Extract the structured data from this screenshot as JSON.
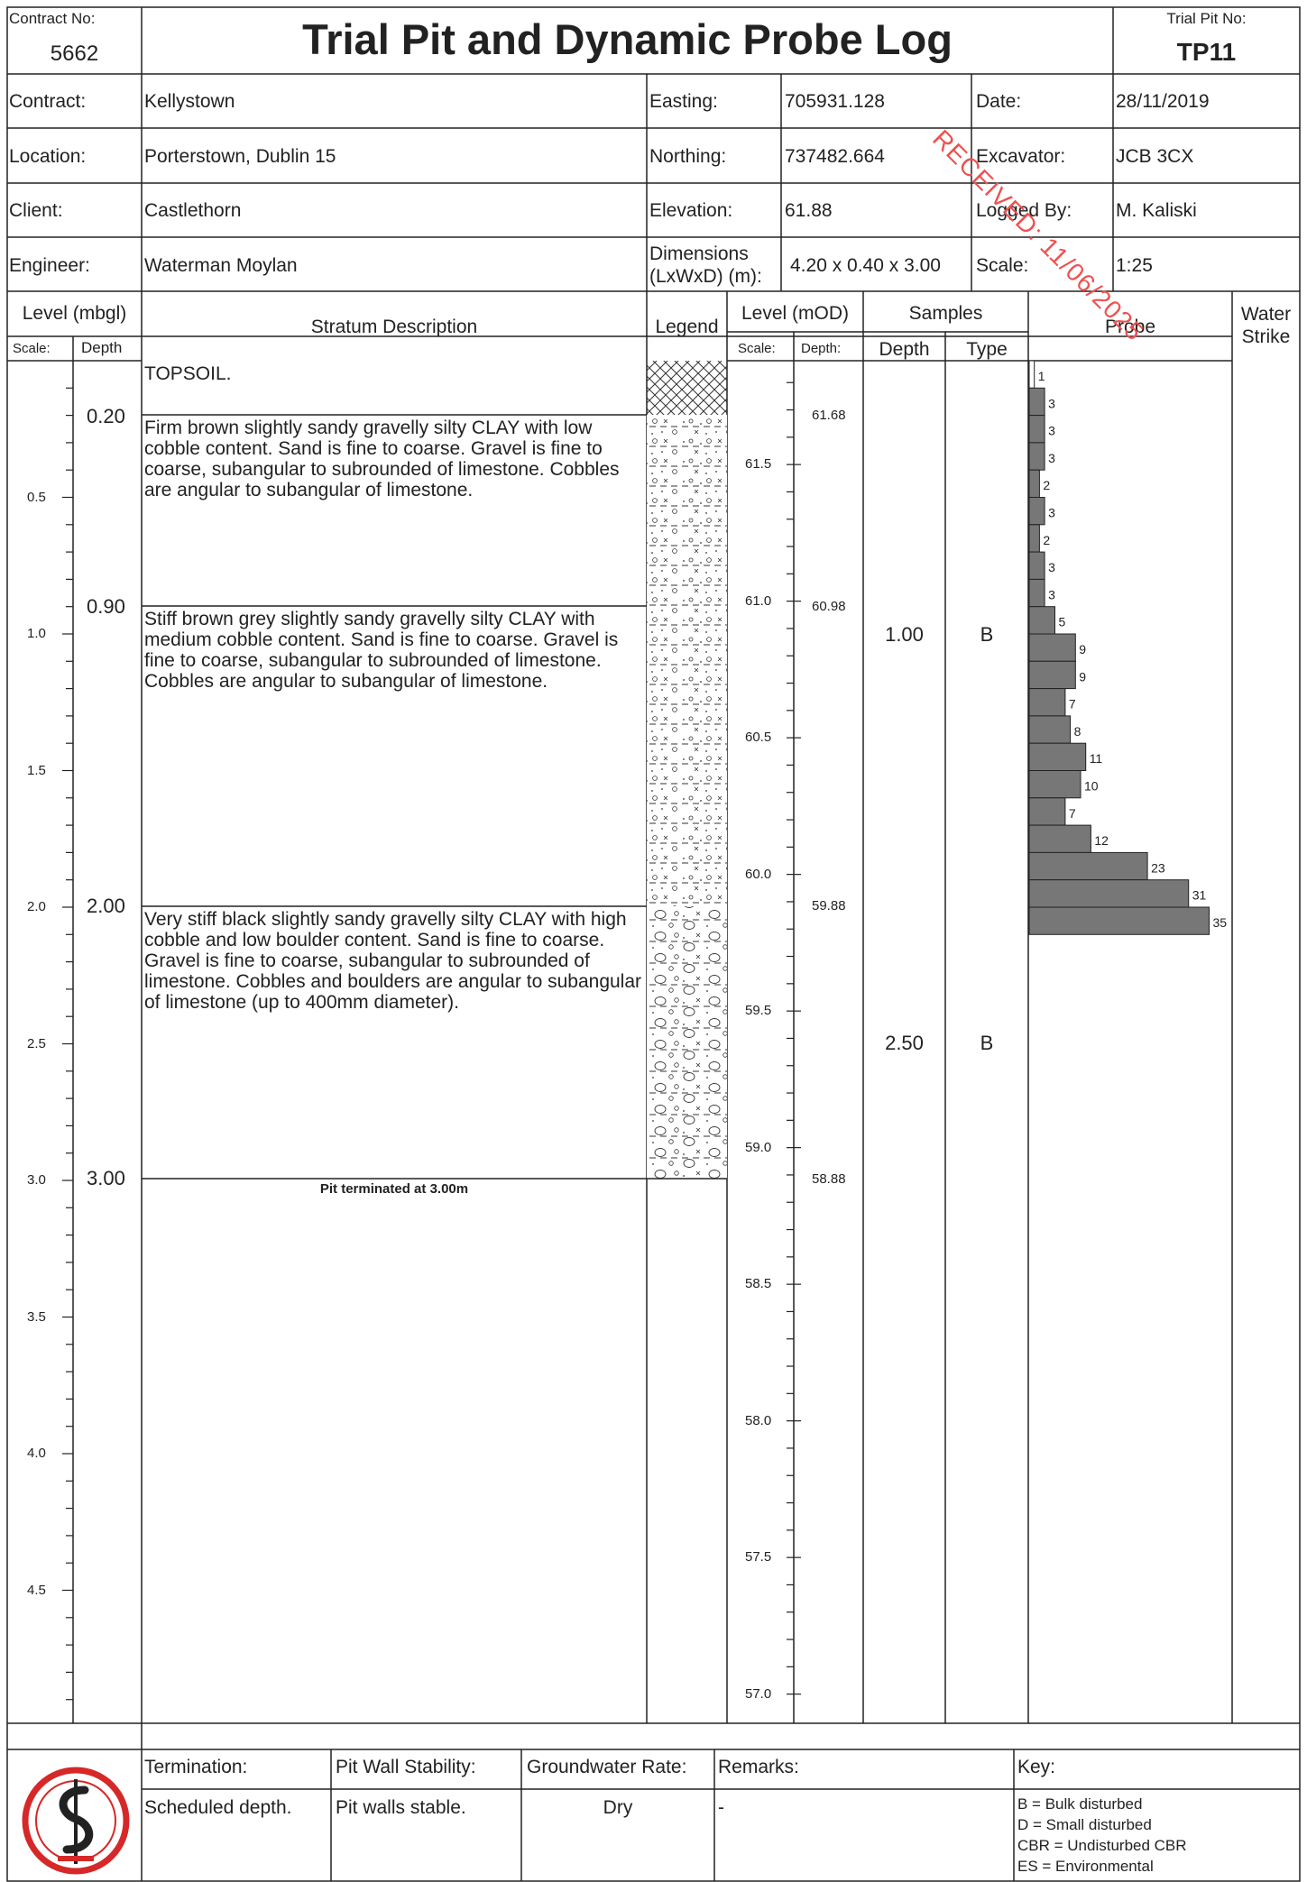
{
  "header": {
    "contract_no_label": "Contract No:",
    "contract_no": "5662",
    "title": "Trial Pit and Dynamic Probe Log",
    "trial_pit_no_label": "Trial Pit No:",
    "trial_pit_no": "TP11"
  },
  "info": {
    "contract_label": "Contract:",
    "contract": "Kellystown",
    "location_label": "Location:",
    "location": "Porterstown, Dublin 15",
    "client_label": "Client:",
    "client": "Castlethorn",
    "engineer_label": "Engineer:",
    "engineer": "Waterman Moylan",
    "easting_label": "Easting:",
    "easting": "705931.128",
    "northing_label": "Northing:",
    "northing": "737482.664",
    "elevation_label": "Elevation:",
    "elevation": "61.88",
    "dimensions_label_1": "Dimensions",
    "dimensions_label_2": "(LxWxD) (m):",
    "dimensions": "4.20 x 0.40 x 3.00",
    "date_label": "Date:",
    "date": "28/11/2019",
    "excavator_label": "Excavator:",
    "excavator": "JCB 3CX",
    "logged_by_label": "Logged By:",
    "logged_by": "M. Kaliski",
    "scale_label": "Scale:",
    "scale": "1:25"
  },
  "columns": {
    "level_mbgl": "Level (mbgl)",
    "scale": "Scale:",
    "depth": "Depth",
    "stratum": "Stratum Description",
    "legend": "Legend",
    "level_mod": "Level (mOD)",
    "mod_scale": "Scale:",
    "mod_depth": "Depth:",
    "samples": "Samples",
    "sample_depth": "Depth",
    "sample_type": "Type",
    "probe": "Probe",
    "water_1": "Water",
    "water_2": "Strike"
  },
  "scale_labels": [
    "0.5",
    "1.0",
    "1.5",
    "2.0",
    "2.5",
    "3.0",
    "3.5",
    "4.0",
    "4.5"
  ],
  "mod_scale_labels": [
    "61.5",
    "61.0",
    "60.5",
    "60.0",
    "59.5",
    "59.0",
    "58.5",
    "58.0",
    "57.5",
    "57.0"
  ],
  "strata": [
    {
      "depth": "",
      "level": "",
      "text": "TOPSOIL."
    },
    {
      "depth": "0.20",
      "level": "61.68",
      "text": "Firm brown slightly sandy gravelly silty CLAY with low cobble content. Sand is fine to coarse. Gravel is fine to coarse, subangular to subrounded of limestone. Cobbles are angular to subangular of limestone."
    },
    {
      "depth": "0.90",
      "level": "60.98",
      "text": "Stiff brown grey slightly sandy gravelly silty CLAY with medium cobble content. Sand is fine to coarse. Gravel is fine to coarse, subangular to subrounded of limestone. Cobbles are angular to subangular of limestone."
    },
    {
      "depth": "2.00",
      "level": "59.88",
      "text": "Very stiff black slightly sandy gravelly silty CLAY with high cobble and low boulder content. Sand is fine to coarse. Gravel is fine to coarse, subangular to subrounded of limestone. Cobbles and boulders are angular to subangular of limestone (up to 400mm diameter)."
    },
    {
      "depth": "3.00",
      "level": "58.88",
      "text": ""
    }
  ],
  "termination_note": "Pit terminated at 3.00m",
  "samples": [
    {
      "depth": "1.00",
      "type": "B"
    },
    {
      "depth": "2.50",
      "type": "B"
    }
  ],
  "probe": {
    "blows": [
      1,
      3,
      3,
      3,
      2,
      3,
      2,
      3,
      3,
      5,
      9,
      9,
      7,
      8,
      11,
      10,
      7,
      12,
      23,
      31,
      35
    ],
    "increment_m": 0.1
  },
  "footer": {
    "termination_label": "Termination:",
    "termination": "Scheduled depth.",
    "wall_label": "Pit Wall Stability:",
    "wall": "Pit walls stable.",
    "gw_label": "Groundwater Rate:",
    "gw": "Dry",
    "remarks_label": "Remarks:",
    "remarks": "-",
    "key_label": "Key:",
    "key": [
      "B =     Bulk disturbed",
      "D =     Small disturbed",
      "CBR = Undisturbed CBR",
      "ES = Environmental"
    ]
  },
  "watermark": "RECEIVED: 11/06/2025",
  "colors": {
    "probe_bar": "#777777",
    "watermark": "#f05050",
    "logo": "#d62828"
  }
}
